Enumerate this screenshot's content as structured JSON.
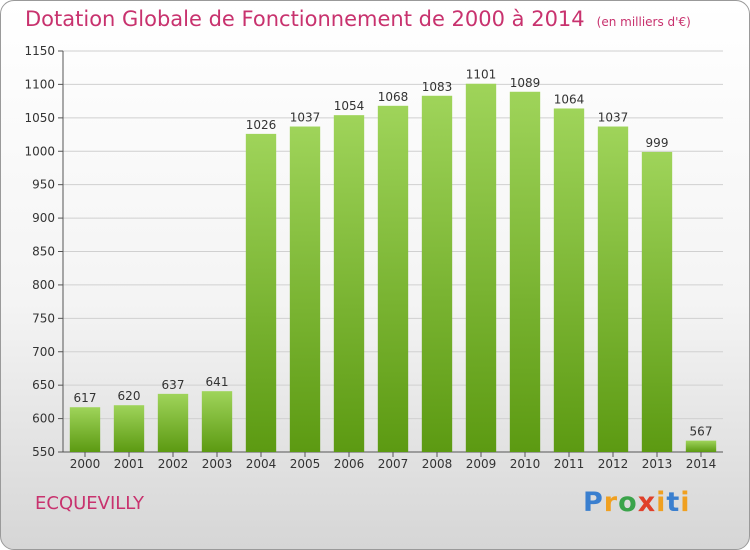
{
  "header": {
    "title": "Dotation Globale de Fonctionnement de 2000 à 2014",
    "subtitle": "(en milliers d'€)"
  },
  "footer": {
    "commune": "ECQUEVILLY",
    "brand": [
      "P",
      "r",
      "o",
      "x",
      "i",
      "t",
      "i"
    ]
  },
  "colors": {
    "title": "#c8326e",
    "bar_top": "#9fd45a",
    "bar_bottom": "#5c9a12",
    "grid": "#d0d0d0"
  },
  "chart_data": {
    "type": "bar",
    "title": "Dotation Globale de Fonctionnement de 2000 à 2014",
    "subtitle": "(en milliers d'€)",
    "categories": [
      "2000",
      "2001",
      "2002",
      "2003",
      "2004",
      "2005",
      "2006",
      "2007",
      "2008",
      "2009",
      "2010",
      "2011",
      "2012",
      "2013",
      "2014"
    ],
    "values": [
      617,
      620,
      637,
      641,
      1026,
      1037,
      1054,
      1068,
      1083,
      1101,
      1089,
      1064,
      1037,
      999,
      567
    ],
    "ylim": [
      550,
      1150
    ],
    "yticks": [
      550,
      600,
      650,
      700,
      750,
      800,
      850,
      900,
      950,
      1000,
      1050,
      1100,
      1150
    ],
    "grid": true,
    "legend": "none"
  }
}
